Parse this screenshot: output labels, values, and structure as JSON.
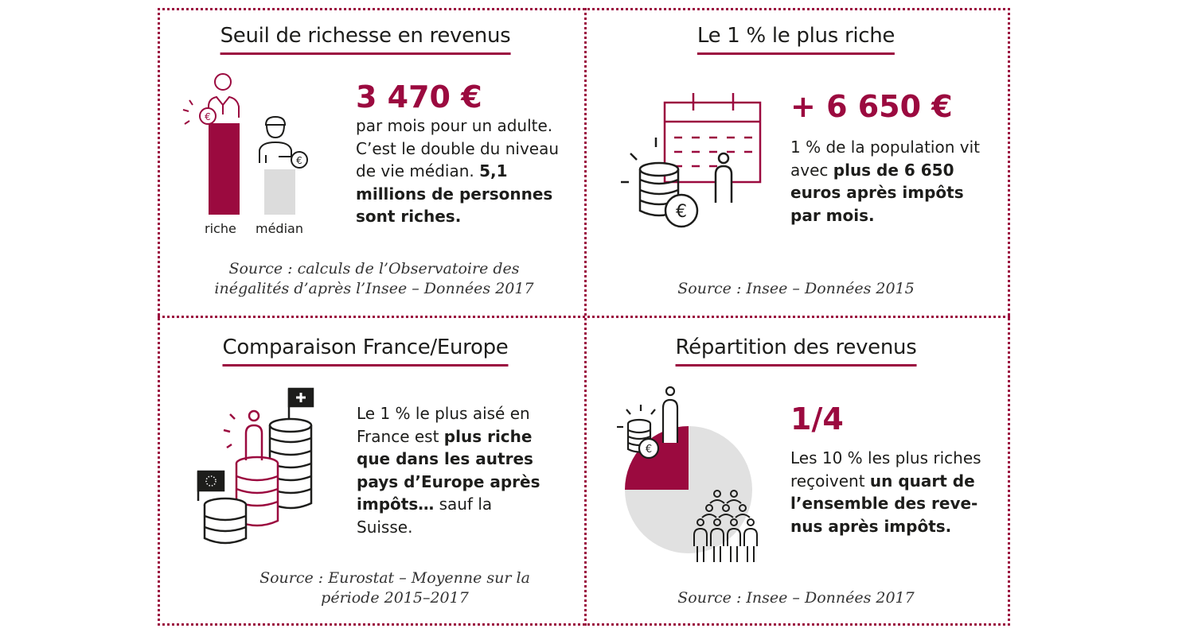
{
  "colors": {
    "accent": "#9b0a3f",
    "grey": "#dcdcdc",
    "text": "#1d1d1b"
  },
  "panels": [
    {
      "title": "Seuil de richesse en revenus",
      "figure": "3 470 €",
      "text_normal": "par mois pour un adulte. C’est le double du niveau de vie médian.",
      "text_bold": "5,1 millions de personnes sont riches.",
      "bar_labels": [
        "riche",
        "médian"
      ],
      "bar_values": [
        3470,
        1735
      ],
      "source": [
        "Source : calculs de l’Observatoire des",
        "inégalités d’après l’Insee – Données 2017"
      ]
    },
    {
      "title": "Le 1 % le plus riche",
      "figure": "+ 6 650 €",
      "text_normal": "1 % de la population vit avec",
      "text_bold": "plus de 6 650 euros après impôts par mois.",
      "source": [
        "Source : Insee – Données 2015"
      ]
    },
    {
      "title": "Comparaison France/Europe",
      "text_normal_1": "Le 1 % le plus aisé en France est",
      "text_bold": "plus riche que dans les autres pays d’Europe après impôts…",
      "text_normal_2": "sauf la Suisse.",
      "source": [
        "Source : Eurostat – Moyenne sur la",
        "période 2015–2017"
      ]
    },
    {
      "title": "Répartition des revenus",
      "figure": "1/4",
      "share": 0.25,
      "text_normal": "Les 10 % les plus riches reçoivent",
      "text_bold": "un quart de l’ensemble des reve- nus après impôts.",
      "source": [
        "Source : Insee – Données 2017"
      ]
    }
  ]
}
